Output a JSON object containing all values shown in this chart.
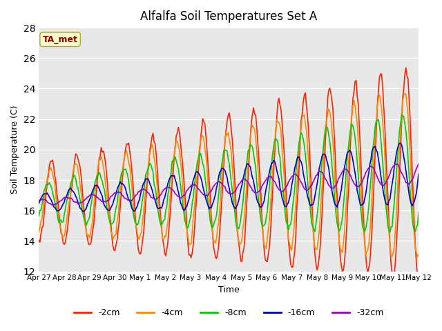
{
  "title": "Alfalfa Soil Temperatures Set A",
  "xlabel": "Time",
  "ylabel": "Soil Temperature (C)",
  "ylim": [
    12,
    28
  ],
  "yticks": [
    12,
    14,
    16,
    18,
    20,
    22,
    24,
    26,
    28
  ],
  "bg_color": "#e8e8e8",
  "annotation_label": "TA_met",
  "annotation_color": "#8B0000",
  "annotation_bg": "#ffffcc",
  "colors": {
    "-2cm": "#ff2200",
    "-4cm": "#ff8800",
    "-8cm": "#00cc00",
    "-16cm": "#0000cc",
    "-32cm": "#9900cc"
  },
  "legend_labels": [
    "-2cm",
    "-4cm",
    "-8cm",
    "-16cm",
    "-32cm"
  ],
  "tick_labels": [
    "Apr 27",
    "Apr 28",
    "Apr 29",
    "Apr 30",
    "May 1",
    "May 2",
    "May 3",
    "May 4",
    "May 5",
    "May 6",
    "May 7",
    "May 8",
    "May 9",
    "May 10",
    "May 11",
    "May 12"
  ],
  "n_days": 15
}
